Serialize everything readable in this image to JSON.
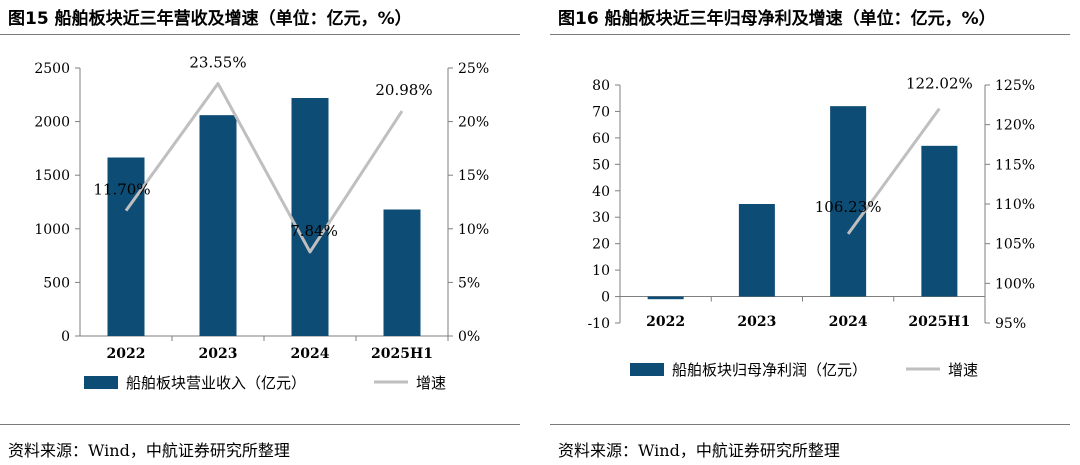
{
  "panels": [
    {
      "title": "图15 船舶板块近三年营收及增速（单位：亿元，%）",
      "source": "资料来源：Wind，中航证券研究所整理"
    },
    {
      "title": "图16 船舶板块近三年归母净利及增速（单位：亿元，%）",
      "source": "资料来源：Wind，中航证券研究所整理"
    }
  ],
  "colors": {
    "bar": "#0d4c74",
    "line": "#bfbfbf",
    "axis": "#7f7f7f"
  },
  "chart_data": [
    {
      "type": "bar",
      "title": "图15 船舶板块近三年营收及增速（单位：亿元，%）",
      "categories": [
        "2022",
        "2023",
        "2024",
        "2025H1"
      ],
      "series": [
        {
          "name": "船舶板块营业收入（亿元）",
          "type": "bar",
          "axis": "left",
          "values": [
            1665,
            2060,
            2220,
            1180
          ]
        },
        {
          "name": "增速",
          "type": "line",
          "axis": "right",
          "values": [
            11.7,
            23.55,
            7.84,
            20.98
          ],
          "labels": [
            "11.70%",
            "23.55%",
            "7.84%",
            "20.98%"
          ]
        }
      ],
      "yleft": {
        "min": 0,
        "max": 2500,
        "ticks": [
          "0",
          "500",
          "1000",
          "1500",
          "2000",
          "2500"
        ]
      },
      "yright": {
        "min": 0,
        "max": 25,
        "ticks": [
          "0%",
          "5%",
          "10%",
          "15%",
          "20%",
          "25%"
        ]
      },
      "legend": "bottom"
    },
    {
      "type": "bar",
      "title": "图16 船舶板块近三年归母净利及增速（单位：亿元，%）",
      "categories": [
        "2022",
        "2023",
        "2024",
        "2025H1"
      ],
      "series": [
        {
          "name": "船舶板块归母净利润（亿元）",
          "type": "bar",
          "axis": "left",
          "values": [
            -1,
            35,
            72,
            57
          ]
        },
        {
          "name": "增速",
          "type": "line",
          "axis": "right",
          "values": [
            null,
            null,
            106.23,
            122.02
          ],
          "labels": [
            "",
            "",
            "106.23%",
            "122.02%"
          ]
        }
      ],
      "yleft": {
        "min": -10,
        "max": 80,
        "ticks": [
          "-10",
          "0",
          "10",
          "20",
          "30",
          "40",
          "50",
          "60",
          "70",
          "80"
        ]
      },
      "yright": {
        "min": 95,
        "max": 125,
        "ticks": [
          "95%",
          "100%",
          "105%",
          "110%",
          "115%",
          "120%",
          "125%"
        ]
      },
      "legend": "bottom"
    }
  ]
}
